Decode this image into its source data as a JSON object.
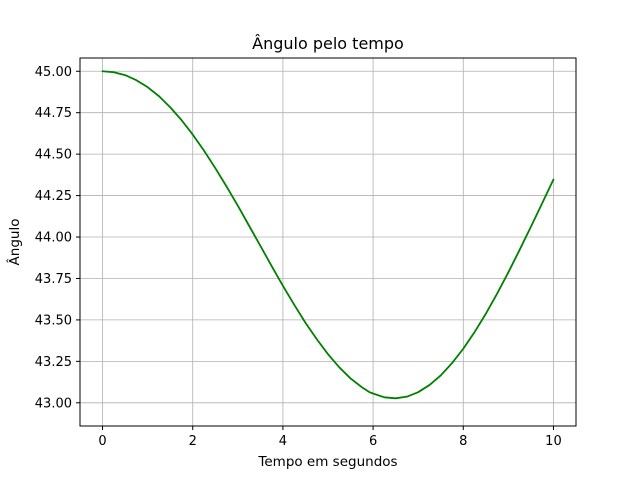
{
  "chart_data": {
    "type": "line",
    "title": "Ângulo pelo tempo",
    "xlabel": "Tempo em segundos",
    "ylabel": "Ângulo",
    "xlim": [
      -0.5,
      10.5
    ],
    "ylim": [
      42.86,
      45.08
    ],
    "xticks": [
      0,
      2,
      4,
      6,
      8,
      10
    ],
    "xtick_labels": [
      "0",
      "2",
      "4",
      "6",
      "8",
      "10"
    ],
    "yticks": [
      43.0,
      43.25,
      43.5,
      43.75,
      44.0,
      44.25,
      44.5,
      44.75,
      45.0
    ],
    "ytick_labels": [
      "43.00",
      "43.25",
      "43.50",
      "43.75",
      "44.00",
      "44.25",
      "44.50",
      "44.75",
      "45.00"
    ],
    "grid": true,
    "series": [
      {
        "color": "#008000",
        "x": [
          0,
          0.25,
          0.5,
          0.75,
          1.0,
          1.25,
          1.5,
          1.75,
          2.0,
          2.25,
          2.5,
          2.75,
          3.0,
          3.25,
          3.5,
          3.75,
          4.0,
          4.25,
          4.5,
          4.75,
          5.0,
          5.25,
          5.5,
          5.75,
          5.92,
          6.0,
          6.25,
          6.5,
          6.75,
          7.0,
          7.25,
          7.5,
          7.75,
          8.0,
          8.25,
          8.5,
          8.75,
          9.0,
          9.25,
          9.5,
          9.75,
          10.0
        ],
        "y": [
          45.0,
          44.994,
          44.977,
          44.946,
          44.904,
          44.85,
          44.783,
          44.706,
          44.618,
          44.521,
          44.416,
          44.305,
          44.189,
          44.068,
          43.947,
          43.825,
          43.706,
          43.592,
          43.483,
          43.384,
          43.293,
          43.214,
          43.147,
          43.094,
          43.064,
          43.056,
          43.033,
          43.027,
          43.037,
          43.064,
          43.107,
          43.165,
          43.239,
          43.326,
          43.426,
          43.537,
          43.658,
          43.787,
          43.923,
          44.062,
          44.204,
          44.347
        ]
      }
    ]
  }
}
